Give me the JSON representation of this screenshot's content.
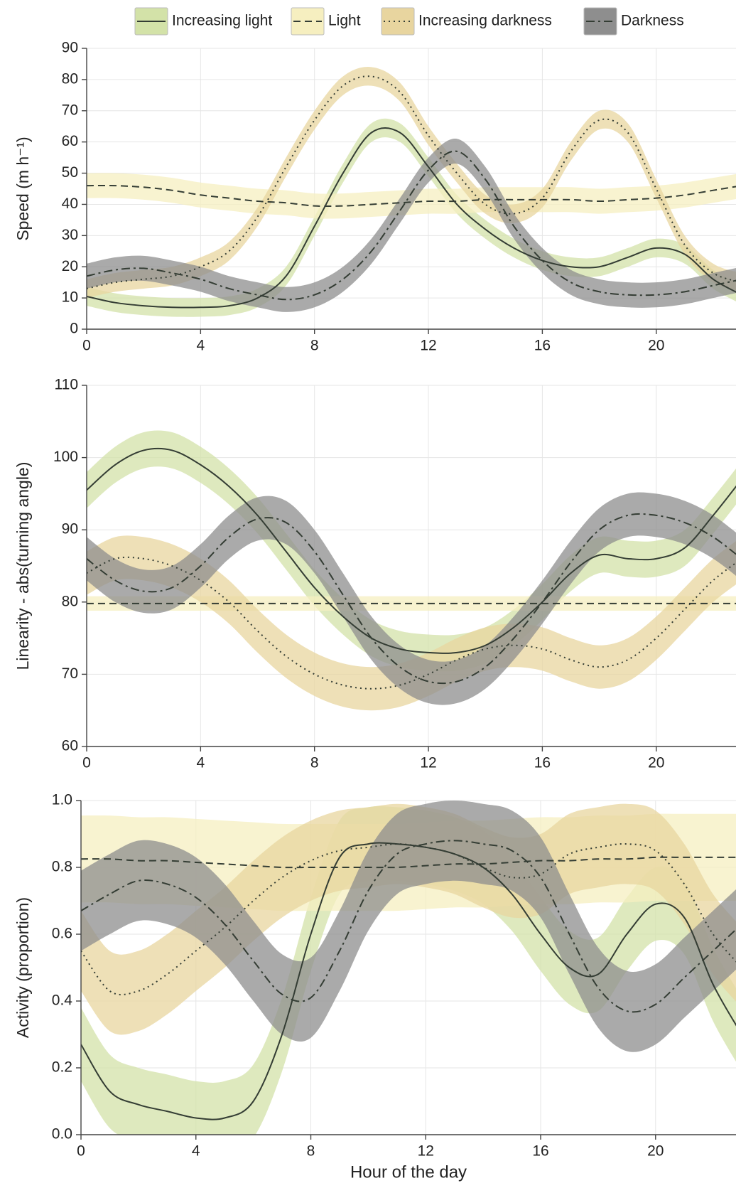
{
  "chart_data": [
    {
      "type": "line",
      "ylabel": "Speed (m h⁻¹)",
      "x": [
        0,
        1,
        2,
        3,
        4,
        5,
        6,
        7,
        8,
        9,
        10,
        11,
        12,
        13,
        14,
        15,
        16,
        17,
        18,
        19,
        20,
        21,
        22,
        23
      ],
      "xlim": [
        0,
        22.8
      ],
      "xticks": [
        0,
        4,
        8,
        12,
        16,
        20
      ],
      "ylim": [
        0,
        90
      ],
      "yticks": [
        0,
        10,
        20,
        30,
        40,
        50,
        60,
        70,
        80,
        90
      ],
      "grid": true,
      "legend": "top",
      "series": [
        {
          "name": "Increasing light",
          "color": "#d3e2a8",
          "line_color": "#343d34",
          "dash": "solid",
          "band": 3,
          "values": [
            10.5,
            8.5,
            7.5,
            7,
            7,
            7.5,
            10,
            17,
            33,
            50,
            63,
            63,
            52,
            40,
            32,
            26,
            22,
            20,
            20,
            23,
            26,
            24,
            16,
            11
          ]
        },
        {
          "name": "Light",
          "color": "#f6efc0",
          "line_color": "#343d34",
          "dash": "dashed",
          "band": 4,
          "values": [
            46,
            46,
            45.5,
            44.5,
            43,
            42,
            41,
            40.5,
            39.5,
            39.5,
            40,
            40.5,
            41,
            41,
            41.5,
            41.5,
            41.5,
            41.5,
            41,
            41.5,
            42,
            43,
            44.5,
            46
          ]
        },
        {
          "name": "Increasing darkness",
          "color": "#e8d59f",
          "line_color": "#343d34",
          "dash": "dotted",
          "band": 3,
          "values": [
            13,
            15,
            16,
            17,
            20,
            25,
            36,
            52,
            67,
            78,
            81,
            76,
            62,
            50,
            40,
            37,
            42,
            57,
            67,
            63,
            45,
            27,
            18,
            15
          ]
        },
        {
          "name": "Darkness",
          "color": "#8e8e8e",
          "line_color": "#343d34",
          "dash": "dashdot",
          "band": 4,
          "values": [
            17,
            19,
            19.5,
            18,
            16,
            13,
            11,
            9.5,
            11,
            16,
            25,
            38,
            51,
            57,
            48,
            33,
            22,
            15,
            12,
            11,
            11,
            12,
            14,
            16
          ]
        }
      ]
    },
    {
      "type": "line",
      "ylabel": "Linearity - abs(turning angle)",
      "x": [
        0,
        1,
        2,
        3,
        4,
        5,
        6,
        7,
        8,
        9,
        10,
        11,
        12,
        13,
        14,
        15,
        16,
        17,
        18,
        19,
        20,
        21,
        22,
        23
      ],
      "xlim": [
        0,
        22.8
      ],
      "xticks": [
        0,
        4,
        8,
        12,
        16,
        20
      ],
      "ylim": [
        60,
        110
      ],
      "yticks": [
        60,
        70,
        80,
        90,
        100,
        110
      ],
      "grid": true,
      "series": [
        {
          "band": 2.5,
          "values": [
            95.5,
            99,
            101,
            101,
            99,
            96,
            92,
            87,
            82,
            78,
            75,
            73.5,
            73,
            73,
            74,
            76.5,
            80,
            84,
            86.5,
            86,
            86,
            87.5,
            92,
            97
          ]
        },
        {
          "band": 1,
          "values": [
            79.8,
            79.8,
            79.8,
            79.8,
            79.8,
            79.8,
            79.8,
            79.8,
            79.8,
            79.8,
            79.8,
            79.8,
            79.8,
            79.8,
            79.8,
            79.8,
            79.8,
            79.8,
            79.8,
            79.8,
            79.8,
            79.8,
            79.8,
            79.8
          ]
        },
        {
          "band": 3,
          "values": [
            84,
            86,
            86,
            85,
            83,
            80,
            76,
            72.5,
            70,
            68.5,
            68,
            68.5,
            70,
            72,
            73.5,
            74,
            73.5,
            72,
            71,
            72,
            75,
            79,
            83,
            86
          ]
        },
        {
          "band": 3,
          "values": [
            86,
            83,
            81.5,
            82,
            85,
            89,
            91.5,
            91,
            87,
            81,
            75,
            71,
            69,
            69,
            71,
            75,
            80,
            85.5,
            90,
            92,
            92,
            91,
            89,
            86
          ]
        }
      ]
    },
    {
      "type": "line",
      "ylabel": "Activity (proportion)",
      "xlabel": "Hour of the day",
      "x": [
        0,
        1,
        2,
        3,
        4,
        5,
        6,
        7,
        8,
        9,
        10,
        11,
        12,
        13,
        14,
        15,
        16,
        17,
        18,
        19,
        20,
        21,
        22,
        23
      ],
      "xlim": [
        0,
        22.8
      ],
      "xticks": [
        0,
        4,
        8,
        12,
        16,
        20
      ],
      "ylim": [
        0,
        1
      ],
      "yticks": [
        {
          "value": 0,
          "label": "0.0"
        },
        0.2,
        0.4,
        0.6,
        0.8,
        {
          "value": 1,
          "label": "1.0"
        }
      ],
      "grid": true,
      "series": [
        {
          "band": 0.11,
          "values": [
            0.27,
            0.13,
            0.09,
            0.07,
            0.05,
            0.05,
            0.1,
            0.3,
            0.6,
            0.83,
            0.87,
            0.87,
            0.86,
            0.84,
            0.8,
            0.72,
            0.6,
            0.5,
            0.48,
            0.6,
            0.69,
            0.65,
            0.45,
            0.3
          ]
        },
        {
          "band": 0.13,
          "values": [
            0.825,
            0.825,
            0.82,
            0.82,
            0.815,
            0.81,
            0.805,
            0.8,
            0.8,
            0.8,
            0.8,
            0.8,
            0.805,
            0.81,
            0.81,
            0.815,
            0.82,
            0.82,
            0.825,
            0.825,
            0.83,
            0.83,
            0.83,
            0.83
          ]
        },
        {
          "band": 0.12,
          "values": [
            0.55,
            0.43,
            0.43,
            0.48,
            0.55,
            0.62,
            0.7,
            0.77,
            0.82,
            0.85,
            0.86,
            0.87,
            0.86,
            0.84,
            0.8,
            0.77,
            0.78,
            0.84,
            0.86,
            0.87,
            0.85,
            0.75,
            0.6,
            0.5
          ]
        },
        {
          "band": 0.12,
          "values": [
            0.67,
            0.72,
            0.76,
            0.75,
            0.71,
            0.63,
            0.52,
            0.42,
            0.41,
            0.55,
            0.73,
            0.84,
            0.87,
            0.88,
            0.87,
            0.85,
            0.77,
            0.6,
            0.44,
            0.37,
            0.39,
            0.47,
            0.55,
            0.63
          ]
        }
      ]
    }
  ]
}
